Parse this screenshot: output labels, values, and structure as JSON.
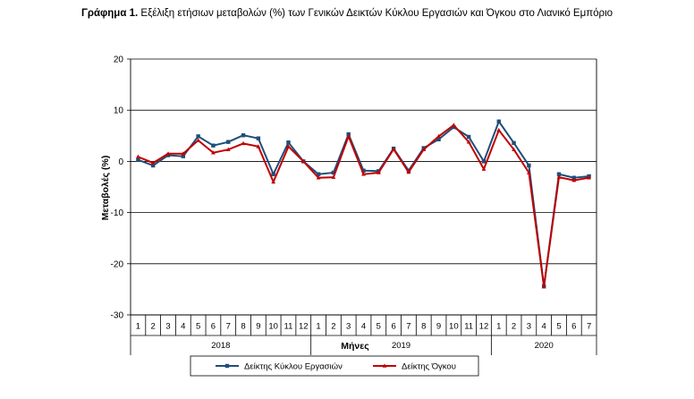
{
  "figure": {
    "label": "Γράφημα 1.",
    "title": "Εξέλιξη ετήσιων μεταβολών (%) των Γενικών Δεικτών Κύκλου Εργασιών και Όγκου στο Λιανικό Εμπόριο"
  },
  "chart_data": {
    "type": "line",
    "title": "Εξέλιξη ετήσιων μεταβολών (%) των Γενικών Δεικτών Κύκλου Εργασιών και Όγκου στο Λιανικό Εμπόριο",
    "xlabel": "Μήνες",
    "ylabel": "Μεταβολές (%)",
    "ylim": [
      -30,
      20
    ],
    "yticks": [
      20,
      10,
      0,
      -10,
      -20,
      -30
    ],
    "grid": true,
    "legend_position": "bottom",
    "x_months": [
      "1",
      "2",
      "3",
      "4",
      "5",
      "6",
      "7",
      "8",
      "9",
      "10",
      "11",
      "12",
      "1",
      "2",
      "3",
      "4",
      "5",
      "6",
      "7",
      "8",
      "9",
      "10",
      "11",
      "12",
      "1",
      "2",
      "3",
      "4",
      "5",
      "6",
      "7"
    ],
    "x_years": [
      {
        "label": "2018",
        "months": 12
      },
      {
        "label": "2019",
        "months": 12
      },
      {
        "label": "2020",
        "months": 7
      }
    ],
    "series": [
      {
        "name": "Δείκτης Κύκλου Εργασιών",
        "color": "#1f4e79",
        "marker": "square",
        "values": [
          0.3,
          -0.8,
          1.2,
          1.0,
          4.9,
          3.1,
          3.8,
          5.1,
          4.5,
          -2.5,
          3.7,
          0.0,
          -2.5,
          -2.2,
          5.3,
          -1.8,
          -1.9,
          2.5,
          -1.8,
          2.6,
          4.3,
          6.7,
          4.8,
          0.0,
          7.8,
          3.6,
          -0.8,
          -24.4,
          -2.5,
          -3.2,
          -2.9
        ]
      },
      {
        "name": "Δείκτης Όγκου",
        "color": "#c00000",
        "marker": "triangle",
        "values": [
          0.9,
          -0.3,
          1.5,
          1.5,
          4.1,
          1.7,
          2.3,
          3.5,
          2.9,
          -4.0,
          2.9,
          0.0,
          -3.2,
          -3.1,
          4.9,
          -2.5,
          -2.2,
          2.4,
          -2.1,
          2.3,
          4.9,
          7.1,
          3.8,
          -1.5,
          6.1,
          2.3,
          -2.2,
          -24.5,
          -3.1,
          -3.7,
          -3.2
        ]
      }
    ]
  }
}
